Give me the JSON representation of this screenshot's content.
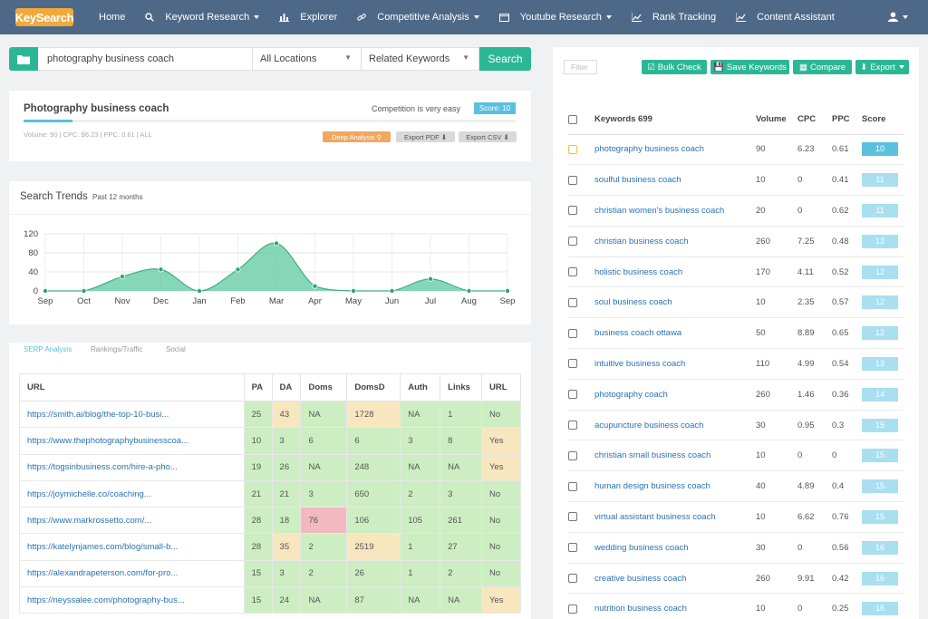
{
  "nav": {
    "logo": "KeySearch",
    "items": [
      {
        "label": "Home",
        "icon": "",
        "caret": false
      },
      {
        "label": "Keyword Research",
        "icon": "search-icon",
        "caret": true
      },
      {
        "label": "Explorer",
        "icon": "bar-chart-icon",
        "caret": false
      },
      {
        "label": "Competitive Analysis",
        "icon": "link-icon",
        "caret": true
      },
      {
        "label": "Youtube Research",
        "icon": "video-icon",
        "caret": true
      },
      {
        "label": "Rank Tracking",
        "icon": "line-chart-icon",
        "caret": false
      },
      {
        "label": "Content Assistant",
        "icon": "line-chart-icon",
        "caret": false
      }
    ]
  },
  "search": {
    "value": "photography business coach",
    "location": "All Locations",
    "mode": "Related Keywords",
    "button": "Search"
  },
  "summary": {
    "title": "Photography business coach",
    "competition": "Competition is very easy",
    "score": "Score: 10",
    "score_fraction": 0.1,
    "meta": "Volume: 90 | CPC: $6.23 | PPC: 0.61 | ALL",
    "deep_analysis": "Deep Analysis",
    "export_pdf": "Export PDF",
    "export_csv": "Export CSV"
  },
  "trends": {
    "title": "Search Trends",
    "subtitle": "Past 12 months"
  },
  "chart_data": {
    "type": "area",
    "categories": [
      "Sep",
      "Oct",
      "Nov",
      "Dec",
      "Jan",
      "Feb",
      "Mar",
      "Apr",
      "May",
      "Jun",
      "Jul",
      "Aug",
      "Sep"
    ],
    "values": [
      0,
      0,
      30,
      45,
      0,
      45,
      100,
      10,
      0,
      0,
      25,
      0,
      0
    ],
    "yticks": [
      0,
      40,
      80,
      120
    ],
    "ylim": [
      0,
      120
    ],
    "color": "#5ec9a0",
    "grid": true
  },
  "serp": {
    "tabs": [
      "SERP Analysis",
      "Rankings/Traffic",
      "Social"
    ],
    "headers": [
      "URL",
      "PA",
      "DA",
      "Doms",
      "DomsD",
      "Auth",
      "Links",
      "URL"
    ],
    "rows": [
      {
        "url": "https://smith.ai/blog/the-top-10-busi...",
        "pa": "25",
        "da": "43",
        "doms": "NA",
        "domsd": "1728",
        "auth": "NA",
        "links": "1",
        "u": "No",
        "c": [
          "g",
          "y",
          "g",
          "y",
          "g",
          "g",
          "g"
        ]
      },
      {
        "url": "https://www.thephotographybusinesscoa...",
        "pa": "10",
        "da": "3",
        "doms": "6",
        "domsd": "6",
        "auth": "3",
        "links": "8",
        "u": "Yes",
        "c": [
          "g",
          "g",
          "g",
          "g",
          "g",
          "g",
          "y"
        ]
      },
      {
        "url": "https://togsinbusiness.com/hire-a-pho...",
        "pa": "19",
        "da": "26",
        "doms": "NA",
        "domsd": "248",
        "auth": "NA",
        "links": "NA",
        "u": "Yes",
        "c": [
          "g",
          "g",
          "g",
          "g",
          "g",
          "g",
          "y"
        ]
      },
      {
        "url": "https://joymichelle.co/coaching...",
        "pa": "21",
        "da": "21",
        "doms": "3",
        "domsd": "650",
        "auth": "2",
        "links": "3",
        "u": "No",
        "c": [
          "g",
          "g",
          "g",
          "g",
          "g",
          "g",
          "g"
        ]
      },
      {
        "url": "https://www.markrossetto.com/...",
        "pa": "28",
        "da": "18",
        "doms": "76",
        "domsd": "106",
        "auth": "105",
        "links": "261",
        "u": "No",
        "c": [
          "g",
          "g",
          "r",
          "g",
          "g",
          "g",
          "g"
        ]
      },
      {
        "url": "https://katelynjames.com/blog/small-b...",
        "pa": "28",
        "da": "35",
        "doms": "2",
        "domsd": "2519",
        "auth": "1",
        "links": "27",
        "u": "No",
        "c": [
          "g",
          "y",
          "g",
          "y",
          "g",
          "g",
          "g"
        ]
      },
      {
        "url": "https://alexandrapeterson.com/for-pro...",
        "pa": "15",
        "da": "3",
        "doms": "2",
        "domsd": "26",
        "auth": "1",
        "links": "2",
        "u": "No",
        "c": [
          "g",
          "g",
          "g",
          "g",
          "g",
          "g",
          "g"
        ]
      },
      {
        "url": "https://neyssalee.com/photography-bus...",
        "pa": "15",
        "da": "24",
        "doms": "NA",
        "domsd": "87",
        "auth": "NA",
        "links": "NA",
        "u": "Yes",
        "c": [
          "g",
          "g",
          "g",
          "g",
          "g",
          "g",
          "y"
        ]
      }
    ]
  },
  "keywords": {
    "filter_placeholder": "Filter",
    "bulk_check": "Bulk Check",
    "save": "Save Keywords",
    "compare": "Compare",
    "export": "Export",
    "headers": [
      "Keywords 699",
      "Volume",
      "CPC",
      "PPC",
      "Score"
    ],
    "rows": [
      {
        "kw": "photography business coach",
        "vol": "90",
        "cpc": "6.23",
        "ppc": "0.61",
        "score": "10"
      },
      {
        "kw": "soulful business coach",
        "vol": "10",
        "cpc": "0",
        "ppc": "0.41",
        "score": "11"
      },
      {
        "kw": "christian women's business coach",
        "vol": "20",
        "cpc": "0",
        "ppc": "0.62",
        "score": "11"
      },
      {
        "kw": "christian business coach",
        "vol": "260",
        "cpc": "7.25",
        "ppc": "0.48",
        "score": "12"
      },
      {
        "kw": "holistic business coach",
        "vol": "170",
        "cpc": "4.11",
        "ppc": "0.52",
        "score": "12"
      },
      {
        "kw": "soul business coach",
        "vol": "10",
        "cpc": "2.35",
        "ppc": "0.57",
        "score": "12"
      },
      {
        "kw": "business coach ottawa",
        "vol": "50",
        "cpc": "8.89",
        "ppc": "0.65",
        "score": "12"
      },
      {
        "kw": "intuitive business coach",
        "vol": "110",
        "cpc": "4.99",
        "ppc": "0.54",
        "score": "13"
      },
      {
        "kw": "photography coach",
        "vol": "260",
        "cpc": "1.46",
        "ppc": "0.36",
        "score": "14"
      },
      {
        "kw": "acupuncture business coach",
        "vol": "30",
        "cpc": "0.95",
        "ppc": "0.3",
        "score": "15"
      },
      {
        "kw": "christian small business coach",
        "vol": "10",
        "cpc": "0",
        "ppc": "0",
        "score": "15"
      },
      {
        "kw": "human design business coach",
        "vol": "40",
        "cpc": "4.89",
        "ppc": "0.4",
        "score": "15"
      },
      {
        "kw": "virtual assistant business coach",
        "vol": "10",
        "cpc": "6.62",
        "ppc": "0.76",
        "score": "15"
      },
      {
        "kw": "wedding business coach",
        "vol": "30",
        "cpc": "0",
        "ppc": "0.56",
        "score": "16"
      },
      {
        "kw": "creative business coach",
        "vol": "260",
        "cpc": "9.91",
        "ppc": "0.42",
        "score": "16"
      },
      {
        "kw": "nutrition business coach",
        "vol": "10",
        "cpc": "0",
        "ppc": "0.25",
        "score": "16"
      }
    ]
  },
  "colors": {
    "accent": "#2bb795",
    "nav": "#4e6888",
    "score_badge": "#5bc0de",
    "score_light": "#a9dff0",
    "deep_analysis": "#f0a860",
    "export_btn": "#d9d9d9",
    "link": "#2a72b5"
  }
}
